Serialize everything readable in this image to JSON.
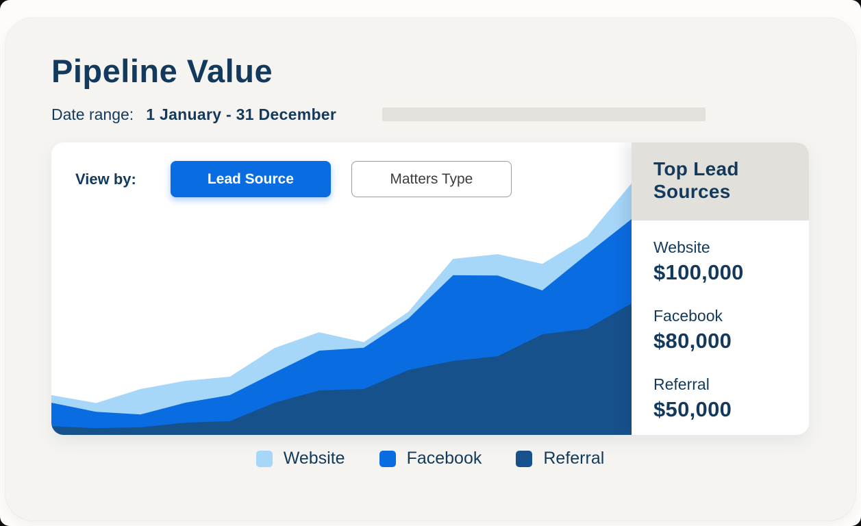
{
  "header": {
    "title": "Pipeline Value",
    "date_range_label": "Date range:",
    "date_range_value": "1 January - 31 December"
  },
  "view_by": {
    "label": "View by:",
    "options": [
      {
        "label": "Lead Source",
        "selected": true
      },
      {
        "label": "Matters Type",
        "selected": false
      }
    ]
  },
  "top_lead_sources": {
    "title": "Top Lead Sources",
    "items": [
      {
        "label": "Website",
        "value": "$100,000"
      },
      {
        "label": "Facebook",
        "value": "$80,000"
      },
      {
        "label": "Referral",
        "value": "$50,000"
      }
    ]
  },
  "legend": {
    "items": [
      {
        "label": "Website",
        "color": "#A6D6F8"
      },
      {
        "label": "Facebook",
        "color": "#0A6CE1"
      },
      {
        "label": "Referral",
        "color": "#17518C"
      }
    ]
  },
  "colors": {
    "navy_text": "#133A5C",
    "accent_blue": "#0A6CE1",
    "light_blue": "#A6D6F8",
    "dark_blue": "#17518C",
    "panel_header_gray": "#E2E0DA",
    "date_bar_gray": "#E3E1DC",
    "page_bg": "#F5F4F1",
    "card_bg": "#FFFFFF"
  },
  "chart_data": {
    "type": "area",
    "stacked": true,
    "title": "Pipeline Value by Lead Source",
    "x": [
      1,
      2,
      3,
      4,
      5,
      6,
      7,
      8,
      9,
      10,
      11,
      12,
      13,
      14
    ],
    "x_axis_labels_visible": false,
    "y_axis_visible": false,
    "grid": false,
    "units": "percent_of_chart_height",
    "ylim": [
      0,
      100
    ],
    "legend_position": "bottom",
    "series": [
      {
        "name": "Referral",
        "color": "#17518C",
        "values": [
          3.0,
          2.3,
          2.6,
          4.2,
          4.7,
          11.0,
          15.2,
          15.7,
          22.2,
          25.3,
          26.9,
          34.4,
          36.3,
          45.0
        ]
      },
      {
        "name": "Facebook",
        "color": "#0A6CE1",
        "values": [
          8.0,
          5.6,
          4.4,
          6.8,
          8.9,
          10.3,
          13.6,
          14.1,
          17.6,
          29.3,
          27.6,
          15.0,
          25.5,
          28.8
        ]
      },
      {
        "name": "Website",
        "color": "#A6D6F8",
        "values": [
          2.6,
          3.0,
          8.7,
          7.5,
          6.3,
          8.4,
          6.3,
          1.9,
          2.3,
          5.6,
          7.3,
          9.1,
          5.9,
          12.2
        ]
      }
    ]
  }
}
